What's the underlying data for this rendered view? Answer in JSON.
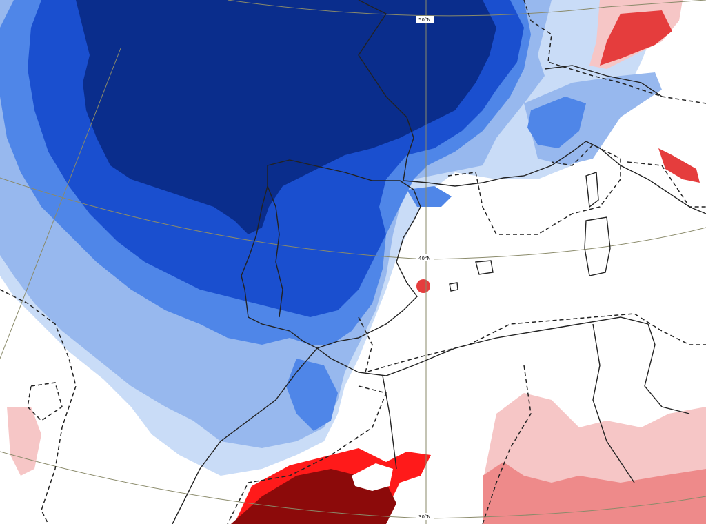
{
  "colors": {
    "background": "#ffffff",
    "neg_1": "#c9dcf7",
    "neg_2": "#97b8ee",
    "neg_3": "#4f86e8",
    "neg_4": "#1a4fcf",
    "neg_5": "#0a2d8c",
    "pos_1": "#f6c6c6",
    "pos_2": "#ee8a8a",
    "pos_3": "#e53d3d",
    "pos_4": "#ff1a1a",
    "pos_5": "#8c0a0a",
    "coastline": "#222222",
    "graticule": "#8a8a6a"
  },
  "map": {
    "labels": {
      "lat_50": "50°N",
      "lat_40": "40°N",
      "lat_30": "30°N"
    }
  }
}
